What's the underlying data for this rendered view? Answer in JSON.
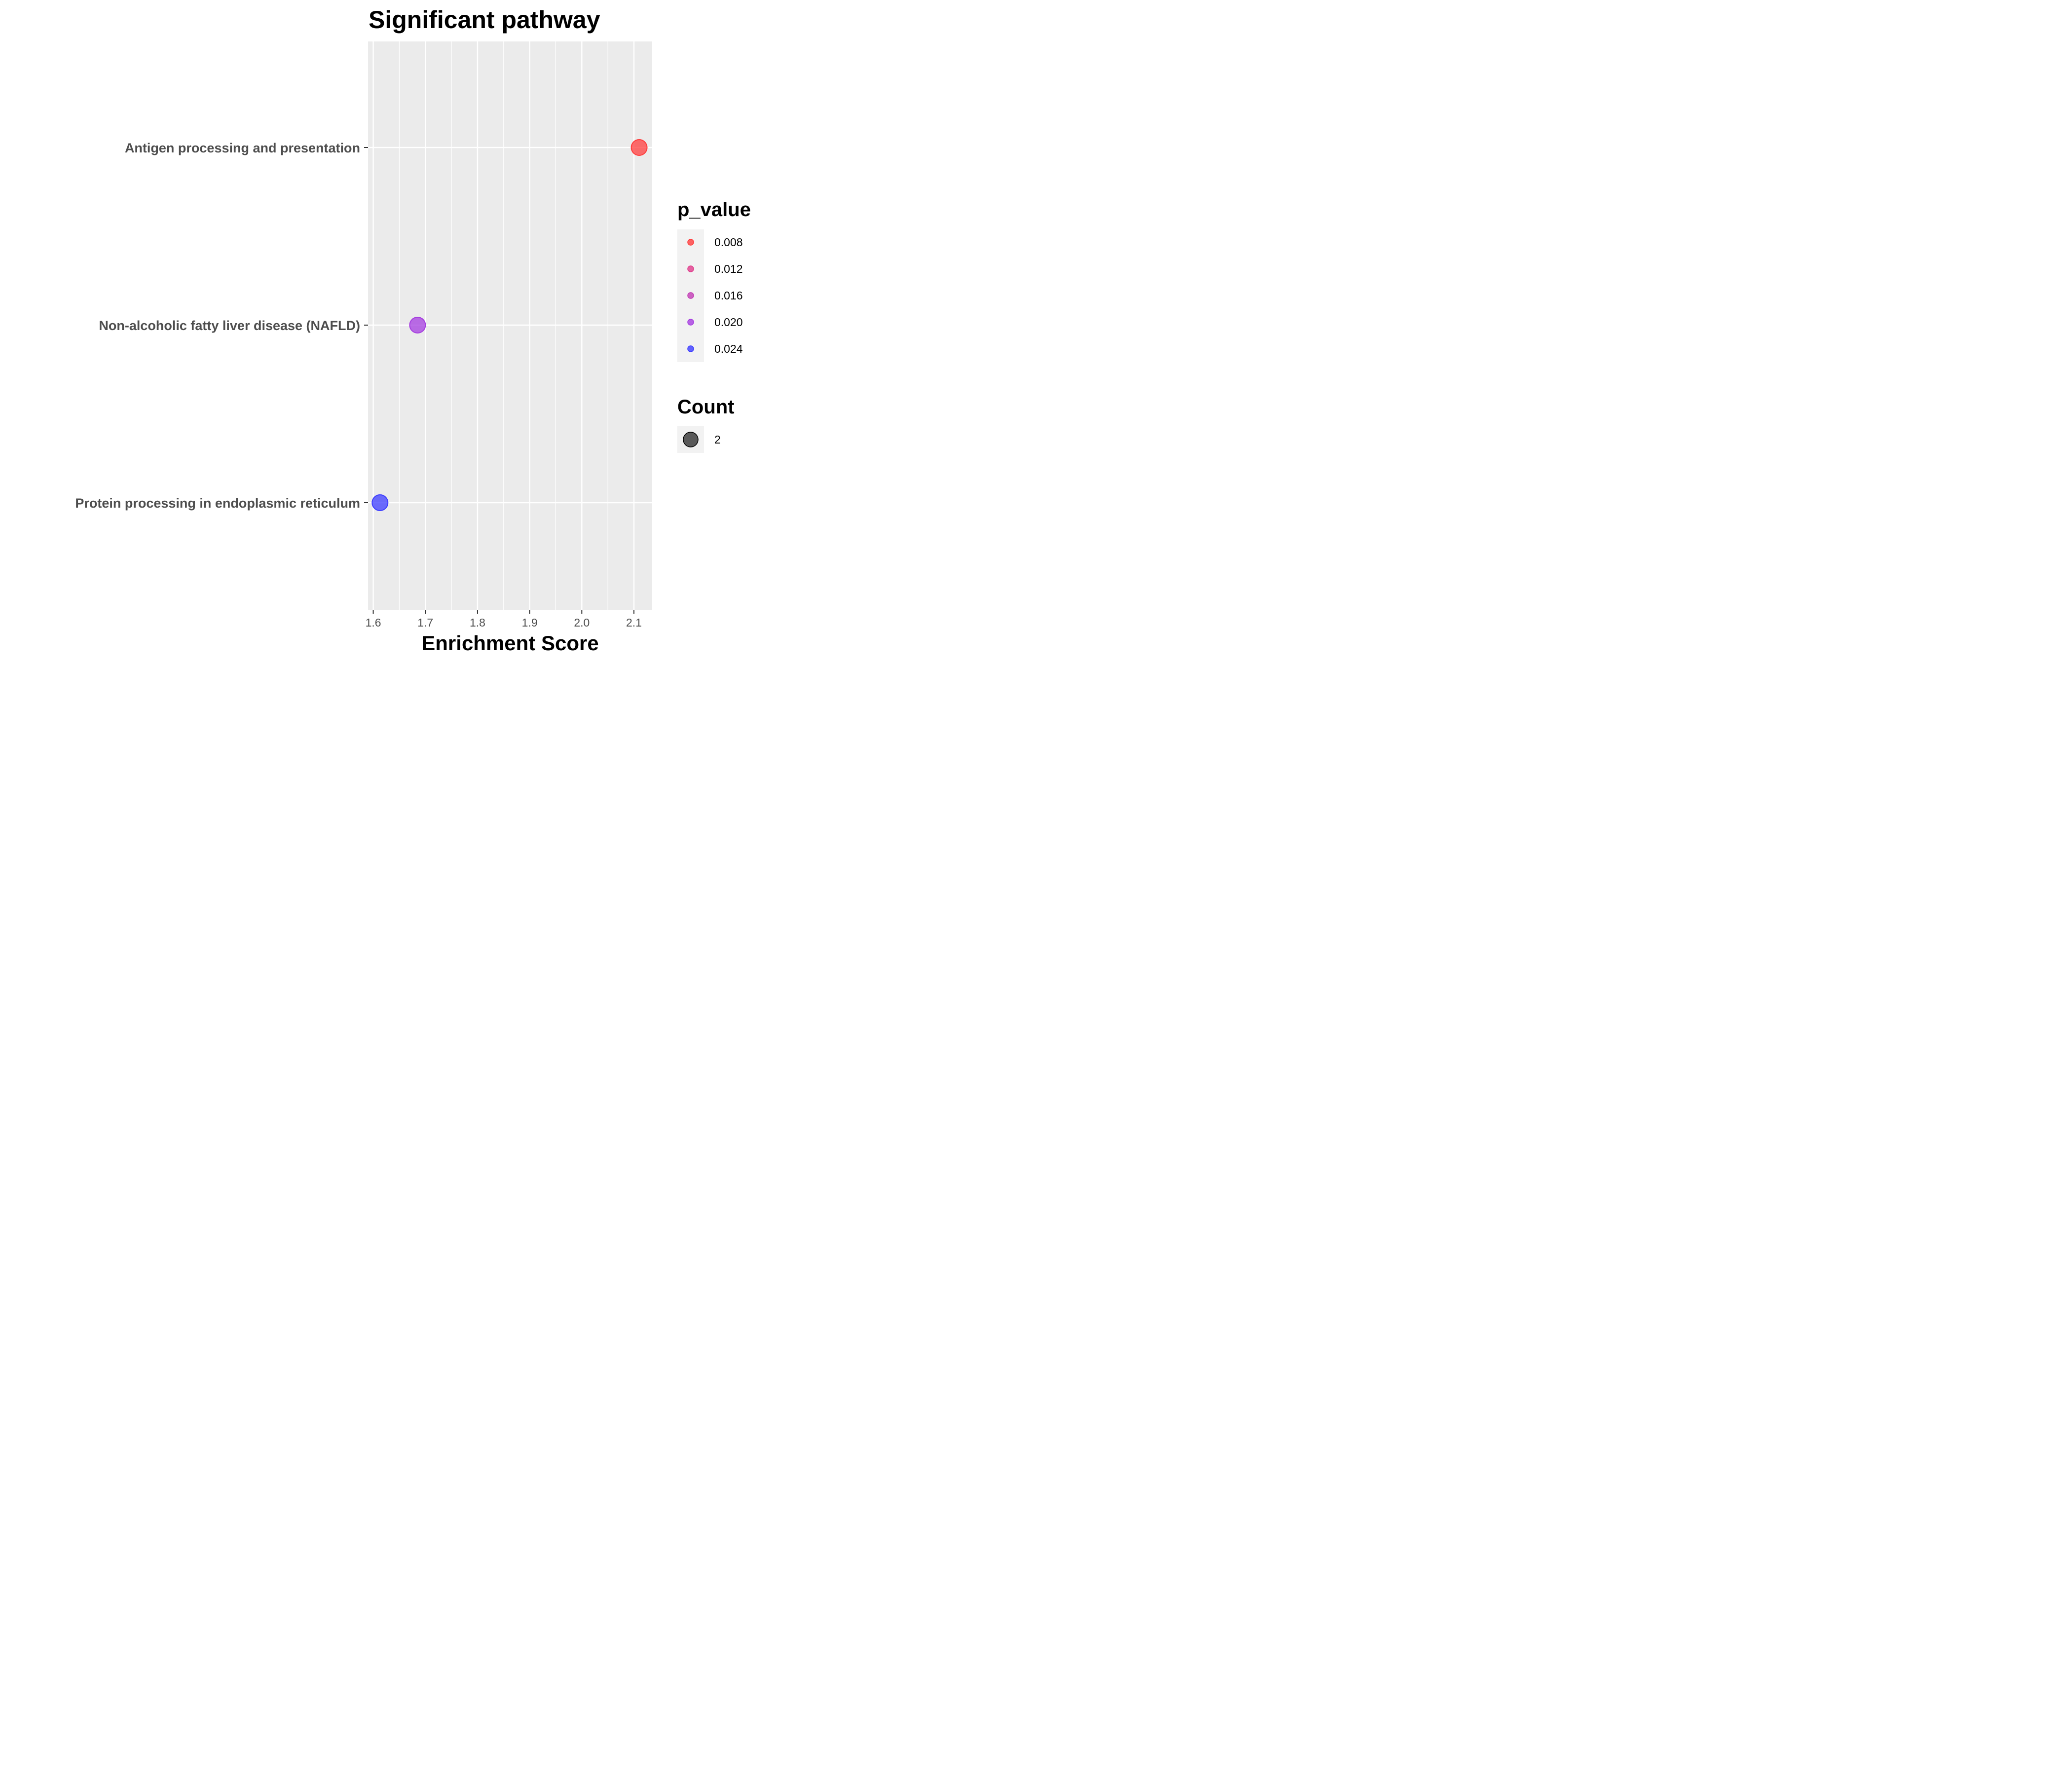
{
  "chart_data": {
    "type": "scatter",
    "title": "Significant pathway",
    "xlabel": "Enrichment Score",
    "ylabel": "",
    "xlim": [
      1.59,
      2.135
    ],
    "x_ticks": [
      "1.6",
      "1.7",
      "1.8",
      "1.9",
      "2.0",
      "2.1"
    ],
    "x_tick_values": [
      1.6,
      1.7,
      1.8,
      1.9,
      2.0,
      2.1
    ],
    "categories": [
      "Antigen processing and presentation",
      "Non-alcoholic fatty liver disease (NAFLD)",
      "Protein processing in endoplasmic reticulum"
    ],
    "points": [
      {
        "pathway": "Antigen processing and presentation",
        "enrichment_score": 2.11,
        "p_value": 0.0068,
        "count": 2,
        "color": "#ff3d3d"
      },
      {
        "pathway": "Non-alcoholic fatty liver disease (NAFLD)",
        "enrichment_score": 1.685,
        "p_value": 0.0208,
        "count": 2,
        "color": "#a63de0"
      },
      {
        "pathway": "Protein processing in endoplasmic reticulum",
        "enrichment_score": 1.613,
        "p_value": 0.0258,
        "count": 2,
        "color": "#3d3dff"
      }
    ],
    "grid": true,
    "panel_background": "#ebebeb",
    "legend": {
      "placement": "right",
      "color_title": "p_value",
      "color_items": [
        {
          "label": "0.008",
          "color": "#ff3d3d"
        },
        {
          "label": "0.012",
          "color": "#e03d8c"
        },
        {
          "label": "0.016",
          "color": "#c23db5"
        },
        {
          "label": "0.020",
          "color": "#a63de0"
        },
        {
          "label": "0.024",
          "color": "#3d3dff"
        }
      ],
      "size_title": "Count",
      "size_items": [
        {
          "label": "2",
          "color": "#333333"
        }
      ]
    }
  }
}
